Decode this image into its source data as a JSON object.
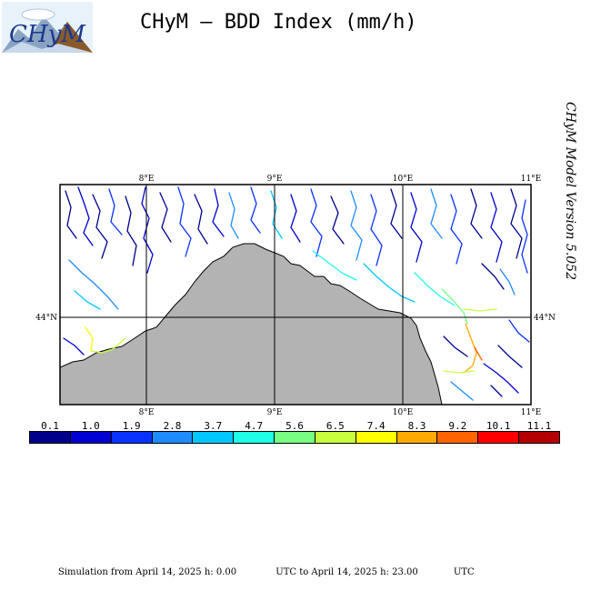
{
  "title": "CHyM – BDD Index (mm/h)",
  "version": "CHyM Model Version 5.052",
  "logo": {
    "text": "CHyM",
    "icon": "chym-logo"
  },
  "map": {
    "lon_ticks_top": [
      "8°E",
      "9°E",
      "10°E",
      "11°E"
    ],
    "lon_ticks_bottom": [
      "8°E",
      "9°E",
      "10°E",
      "11°E"
    ],
    "lat_tick_left": "44°N",
    "lat_tick_right": "44°N",
    "land_color": "#ffffff",
    "sea_color": "#b3b3b3"
  },
  "scale": {
    "labels": [
      "0.1",
      "1.0",
      "1.9",
      "2.8",
      "3.7",
      "4.7",
      "5.6",
      "6.5",
      "7.4",
      "8.3",
      "9.2",
      "10.1",
      "11.1"
    ],
    "colors": [
      "#00008b",
      "#0000d2",
      "#0a32ff",
      "#1e8cff",
      "#00c8ff",
      "#1effe6",
      "#78ff82",
      "#c8ff3c",
      "#ffff00",
      "#ffaa00",
      "#ff6400",
      "#ff0000",
      "#b40000"
    ]
  },
  "footer": {
    "left": "Simulation from April 14, 2025 h: 0.00",
    "mid": "UTC to April 14, 2025 h: 23.00",
    "right": "UTC"
  }
}
